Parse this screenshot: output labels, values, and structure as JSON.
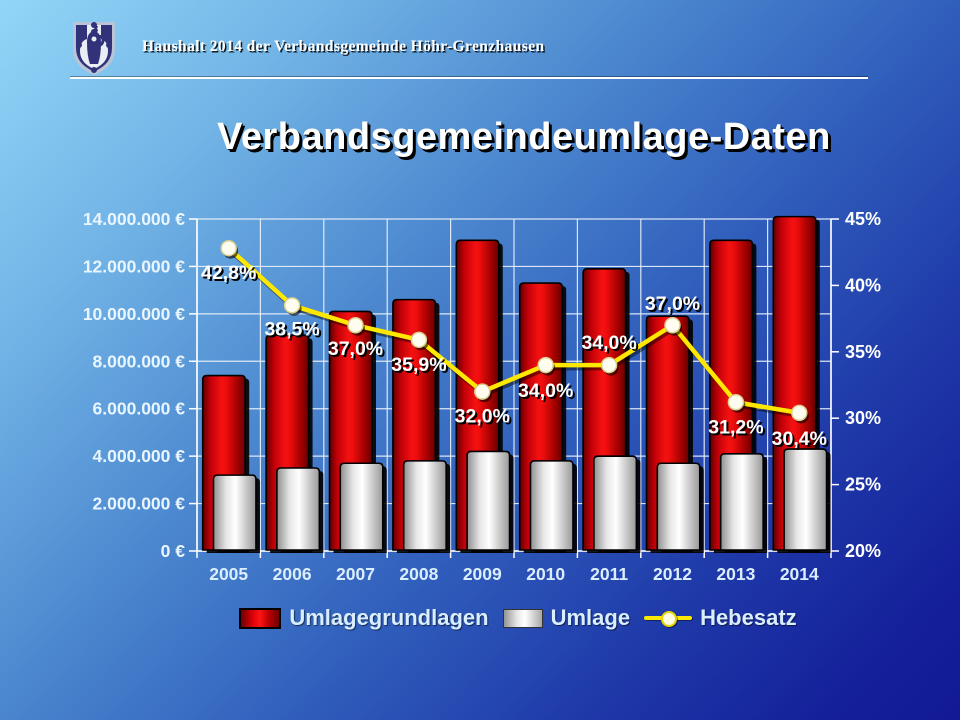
{
  "slide": {
    "header": {
      "logo": "hoehr-grenzhausen-coat-of-arms",
      "text": "Haushalt 2014 der Verbandsgemeinde Höhr-Grenzhausen"
    },
    "title": "Verbandsgemeindeumlage-Daten"
  },
  "chart_data": {
    "type": "bar+line combo",
    "title": "Verbandsgemeindeumlage-Daten",
    "categories": [
      "2005",
      "2006",
      "2007",
      "2008",
      "2009",
      "2010",
      "2011",
      "2012",
      "2013",
      "2014"
    ],
    "series": [
      {
        "name": "Umlagegrundlagen",
        "type": "bar",
        "axis": "left",
        "color": "#e80000",
        "values": [
          7400000,
          9100000,
          10100000,
          10600000,
          13100000,
          11300000,
          11900000,
          9900000,
          13100000,
          14100000
        ]
      },
      {
        "name": "Umlage",
        "type": "bar",
        "axis": "left",
        "color": "#ffffff",
        "values": [
          3200000,
          3500000,
          3700000,
          3800000,
          4200000,
          3800000,
          4000000,
          3700000,
          4100000,
          4300000
        ]
      },
      {
        "name": "Hebesatz",
        "type": "line",
        "axis": "right",
        "color": "#ffe800",
        "values": [
          42.8,
          38.5,
          37.0,
          35.9,
          32.0,
          34.0,
          34.0,
          37.0,
          31.2,
          30.4
        ],
        "point_labels": [
          "42,8%",
          "38,5%",
          "37,0%",
          "35,9%",
          "32,0%",
          "34,0%",
          "34,0%",
          "37,0%",
          "31,2%",
          "30,4%"
        ]
      }
    ],
    "left_axis": {
      "unit": "€",
      "min": 0,
      "max": 14000000,
      "step": 2000000,
      "tick_labels": [
        "0 €",
        "2.000.000 €",
        "4.000.000 €",
        "6.000.000 €",
        "8.000.000 €",
        "10.000.000 €",
        "12.000.000 €",
        "14.000.000 €"
      ]
    },
    "right_axis": {
      "unit": "%",
      "min": 20,
      "max": 45,
      "step": 5,
      "tick_labels": [
        "20%",
        "25%",
        "30%",
        "35%",
        "40%",
        "45%"
      ]
    },
    "legend": [
      {
        "label": "Umlagegrundlagen",
        "swatch": "bar-red"
      },
      {
        "label": "Umlage",
        "swatch": "bar-white"
      },
      {
        "label": "Hebesatz",
        "swatch": "line-yellow"
      }
    ],
    "layout": {
      "grid": "horizontal every 2M + vertical at category boundaries, white lines",
      "legend_position": "bottom-center",
      "label_dy": [
        25,
        24,
        24,
        25,
        25,
        26,
        -22,
        -21,
        25,
        26
      ]
    }
  }
}
